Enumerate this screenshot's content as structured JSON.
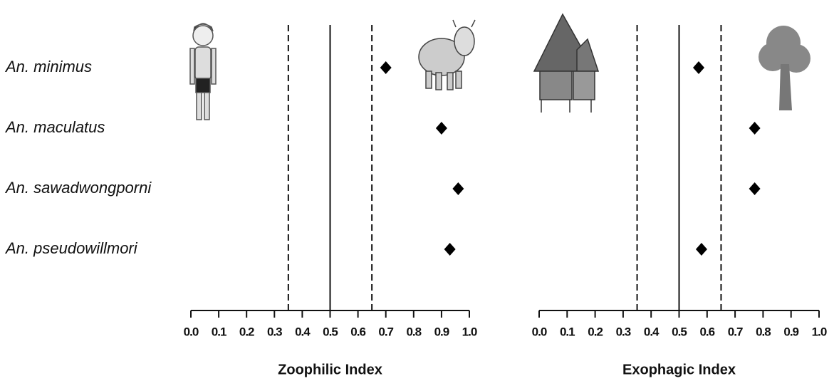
{
  "chart_data": [
    {
      "type": "dot",
      "xlabel": "Zoophilic Index",
      "categories": [
        "An. minimus",
        "An. maculatus",
        "An. sawadwongporni",
        "An. pseudowillmori"
      ],
      "values": [
        0.7,
        0.9,
        0.96,
        0.93
      ],
      "color": "#000000",
      "xlim": [
        0,
        1
      ],
      "xticks": [
        {
          "value": 0,
          "label": "0.0"
        },
        0.1,
        0.2,
        0.3,
        0.4,
        0.5,
        0.6,
        0.7,
        0.8,
        0.9,
        {
          "value": 1,
          "label": "1.0"
        }
      ],
      "reference_lines": [
        {
          "value": 0.35,
          "style": "dashed"
        },
        {
          "value": 0.5,
          "style": "solid"
        },
        {
          "value": 0.65,
          "style": "dashed"
        }
      ]
    },
    {
      "type": "dot",
      "xlabel": "Exophagic Index",
      "values": [
        0.57,
        0.77,
        0.77,
        0.58
      ],
      "color": "#000000",
      "xlim": [
        0,
        1
      ],
      "xticks": [
        {
          "value": 0,
          "label": "0.0"
        },
        0.1,
        0.2,
        0.3,
        0.4,
        0.5,
        0.6,
        0.7,
        0.8,
        0.9,
        {
          "value": 1,
          "label": "1.0"
        }
      ],
      "reference_lines": [
        {
          "value": 0.35,
          "style": "dashed"
        },
        {
          "value": 0.5,
          "style": "solid"
        },
        {
          "value": 0.65,
          "style": "dashed"
        }
      ]
    }
  ]
}
